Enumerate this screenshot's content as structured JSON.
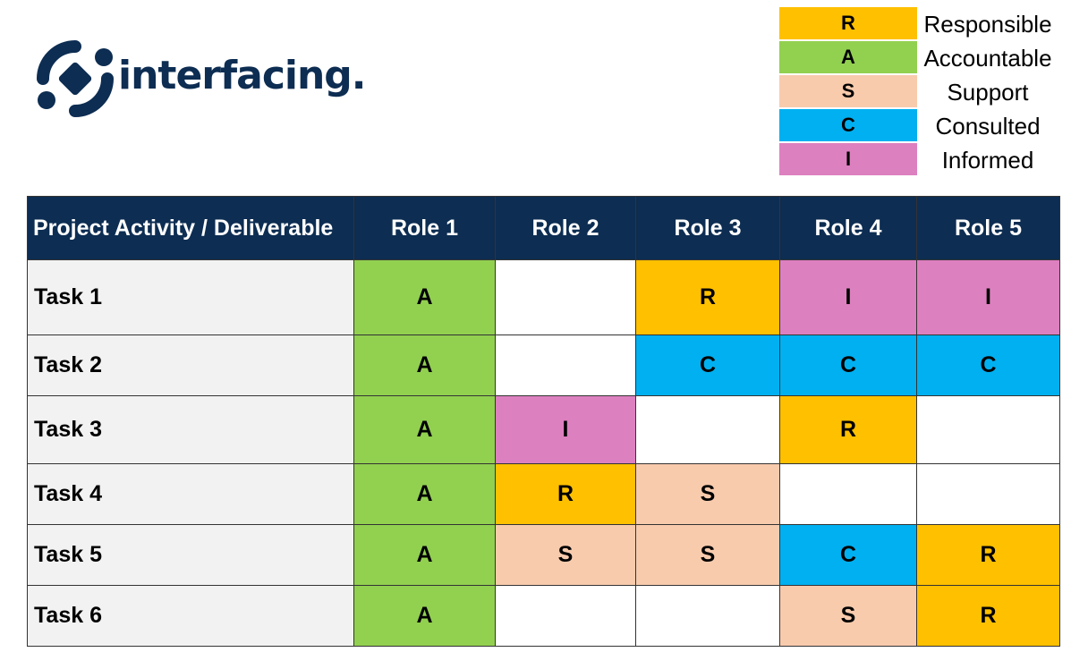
{
  "brand": {
    "name": "interfacing.",
    "color": "#0d2d52"
  },
  "legend": [
    {
      "code": "R",
      "label": "Responsible",
      "color": "#ffc000"
    },
    {
      "code": "A",
      "label": "Accountable",
      "color": "#92d050"
    },
    {
      "code": "S",
      "label": "Support",
      "color": "#f8cbad"
    },
    {
      "code": "C",
      "label": "Consulted",
      "color": "#00b0f0"
    },
    {
      "code": "I",
      "label": "Informed",
      "color": "#dd80c0"
    }
  ],
  "table": {
    "header": [
      "Project Activity / Deliverable",
      "Role 1",
      "Role 2",
      "Role 3",
      "Role 4",
      "Role 5"
    ],
    "header_color": "#0d2d52",
    "rows": [
      {
        "task": "Task 1",
        "cells": [
          "A",
          "",
          "R",
          "I",
          "I"
        ]
      },
      {
        "task": "Task 2",
        "cells": [
          "A",
          "",
          "C",
          "C",
          "C"
        ]
      },
      {
        "task": "Task 3",
        "cells": [
          "A",
          "I",
          "",
          "R",
          ""
        ]
      },
      {
        "task": "Task 4",
        "cells": [
          "A",
          "R",
          "S",
          "",
          ""
        ]
      },
      {
        "task": "Task 5",
        "cells": [
          "A",
          "S",
          "S",
          "C",
          "R"
        ]
      },
      {
        "task": "Task 6",
        "cells": [
          "A",
          "",
          "",
          "S",
          "R"
        ]
      }
    ]
  }
}
